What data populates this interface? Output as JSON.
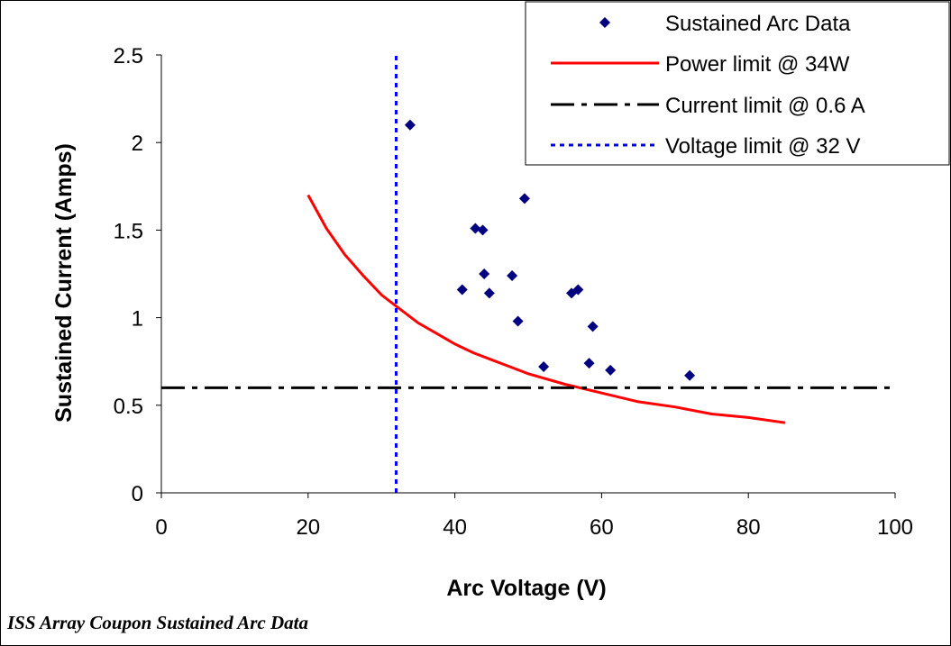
{
  "caption": "ISS Array Coupon Sustained Arc Data",
  "chart_data": {
    "type": "scatter",
    "title": "",
    "xlabel": "Arc Voltage (V)",
    "ylabel": "Sustained Current (Amps)",
    "xlim": [
      0,
      100
    ],
    "ylim": [
      0,
      2.5
    ],
    "x_ticks": [
      0,
      20,
      40,
      60,
      80,
      100
    ],
    "x_tick_labels": [
      "0",
      "20",
      "40",
      "60",
      "80",
      "100"
    ],
    "y_ticks": [
      0,
      0.5,
      1,
      1.5,
      2,
      2.5
    ],
    "y_tick_labels": [
      "0",
      "0.5",
      "1",
      "1.5",
      "2",
      "2.5"
    ],
    "grid": false,
    "legend_position": "top-right",
    "series": [
      {
        "name": "Sustained Arc Data",
        "kind": "scatter",
        "marker": "diamond",
        "color": "#000080",
        "points": [
          [
            33.9,
            2.1
          ],
          [
            42.8,
            1.51
          ],
          [
            43.8,
            1.5
          ],
          [
            49.5,
            1.68
          ],
          [
            41.0,
            1.16
          ],
          [
            44.0,
            1.25
          ],
          [
            44.7,
            1.14
          ],
          [
            47.8,
            1.24
          ],
          [
            48.6,
            0.98
          ],
          [
            52.1,
            0.72
          ],
          [
            55.9,
            1.14
          ],
          [
            56.8,
            1.16
          ],
          [
            58.3,
            0.74
          ],
          [
            58.8,
            0.95
          ],
          [
            61.2,
            0.7
          ],
          [
            72.0,
            0.67
          ]
        ]
      },
      {
        "name": "Power limit @ 34W",
        "kind": "line",
        "line_style": "solid",
        "color": "#ff0000",
        "points": [
          [
            20,
            1.7
          ],
          [
            22.5,
            1.51
          ],
          [
            25,
            1.36
          ],
          [
            27.5,
            1.24
          ],
          [
            30,
            1.13
          ],
          [
            32.5,
            1.05
          ],
          [
            35,
            0.97
          ],
          [
            37.5,
            0.91
          ],
          [
            40,
            0.85
          ],
          [
            42.5,
            0.8
          ],
          [
            45,
            0.76
          ],
          [
            47.5,
            0.72
          ],
          [
            50,
            0.68
          ],
          [
            55,
            0.62
          ],
          [
            60,
            0.57
          ],
          [
            65,
            0.52
          ],
          [
            70,
            0.49
          ],
          [
            75,
            0.45
          ],
          [
            80,
            0.43
          ],
          [
            85,
            0.4
          ]
        ]
      },
      {
        "name": "Current limit @ 0.6 A",
        "kind": "hline",
        "line_style": "dash-dot",
        "color": "#000000",
        "y": 0.6,
        "x_range": [
          0,
          100
        ]
      },
      {
        "name": "Voltage limit @ 32 V",
        "kind": "vline",
        "line_style": "dotted",
        "color": "#0000ff",
        "x": 32,
        "y_range": [
          0,
          2.5
        ]
      }
    ]
  }
}
